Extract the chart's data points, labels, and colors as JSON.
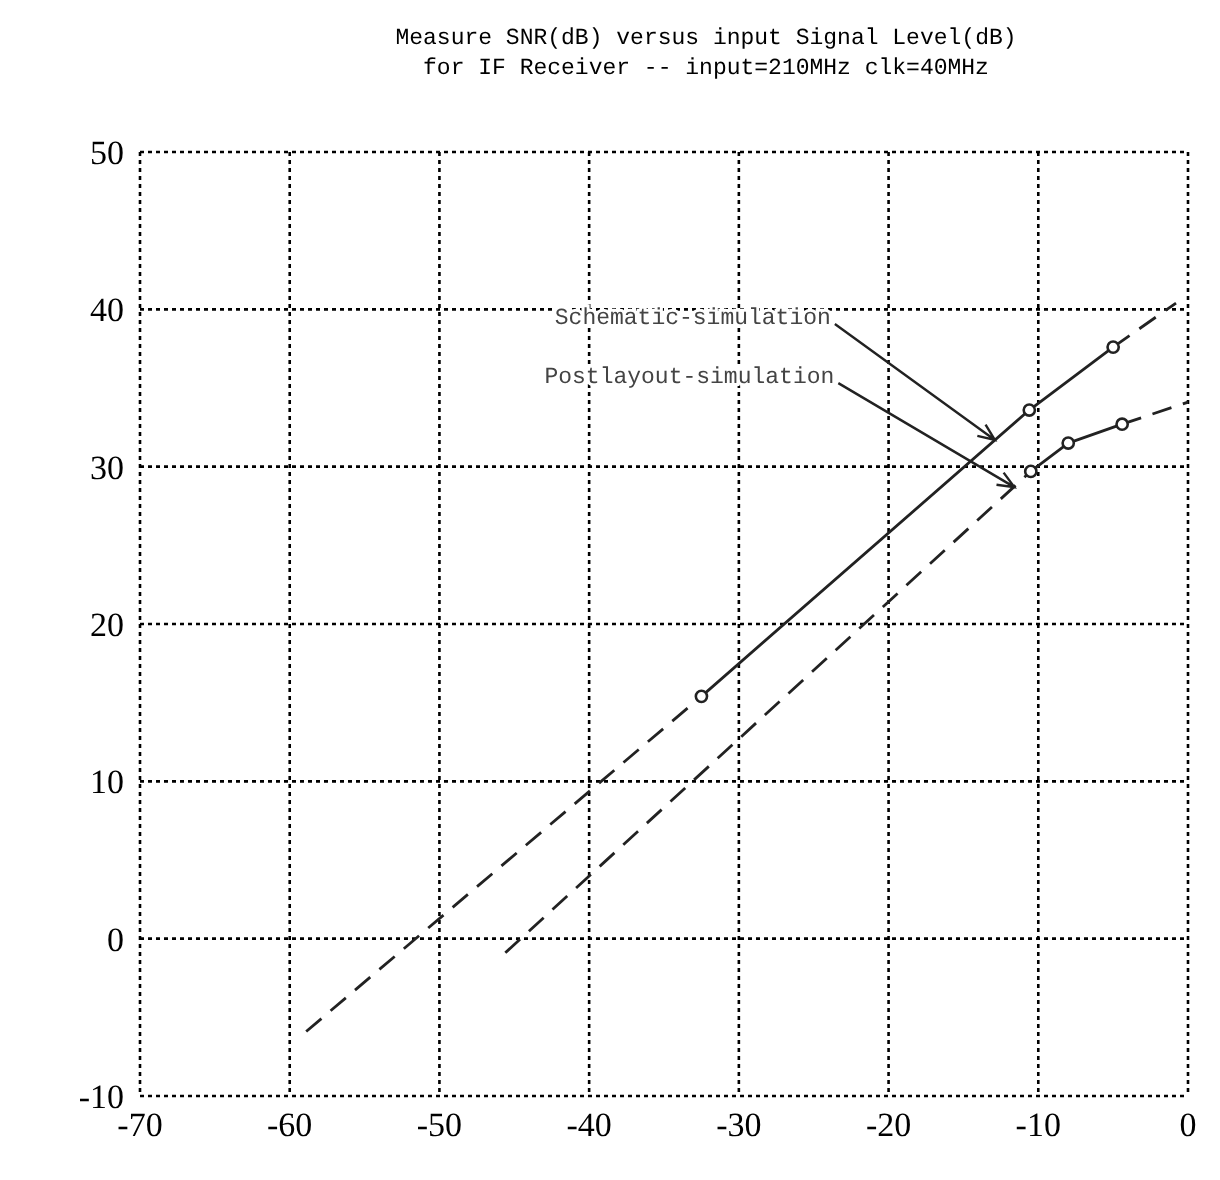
{
  "chart_data": {
    "type": "line",
    "title": "Measure SNR(dB) versus input Signal Level(dB)",
    "subtitle": "for IF Receiver -- input=210MHz clk=40MHz",
    "xlim": [
      -70,
      0
    ],
    "xticks": [
      -70,
      -60,
      -50,
      -40,
      -30,
      -20,
      -10,
      0
    ],
    "ylim": [
      -10,
      50
    ],
    "yticks": [
      -10,
      0,
      10,
      20,
      30,
      40,
      50
    ],
    "grid": true,
    "series": [
      {
        "color": "#222222",
        "x": [
          -58.9,
          -32.5
        ],
        "values": [
          -5.9,
          15.4
        ],
        "line_style": "dashed"
      },
      {
        "color": "#222222",
        "x": [
          -32.5,
          -10.6,
          -5.0
        ],
        "values": [
          15.4,
          33.6,
          37.6
        ],
        "line_style": "solid",
        "marker": "circle"
      },
      {
        "color": "#222222",
        "x": [
          -5.0,
          -0.8
        ],
        "values": [
          37.6,
          40.4
        ],
        "line_style": "dashed"
      },
      {
        "color": "#222222",
        "x": [
          -45.6,
          -10.5
        ],
        "values": [
          -0.9,
          29.7
        ],
        "line_style": "dashed"
      },
      {
        "color": "#222222",
        "x": [
          -10.5,
          -8.0,
          -4.4
        ],
        "values": [
          29.7,
          31.5,
          32.7
        ],
        "line_style": "solid",
        "marker": "circle"
      },
      {
        "color": "#222222",
        "x": [
          -4.4,
          0
        ],
        "values": [
          32.7,
          34.1
        ],
        "line_style": "dashed"
      }
    ],
    "annotations": [
      {
        "text": "Schematic-simulation",
        "x": -12.9,
        "y": 31.7
      },
      {
        "text": "Postlayout-simulation",
        "x": -11.6,
        "y": 28.7
      }
    ]
  }
}
